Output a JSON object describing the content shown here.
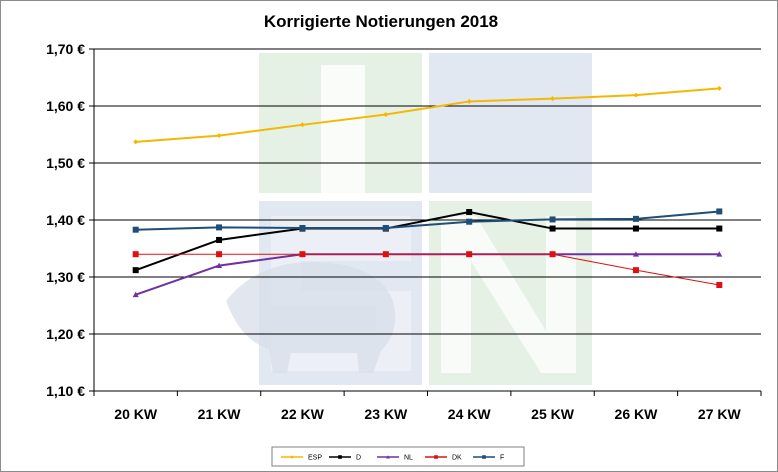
{
  "chart_data": {
    "type": "line",
    "title": "Korrigierte Notierungen 2018",
    "categories": [
      "20 KW",
      "21 KW",
      "22 KW",
      "23 KW",
      "24 KW",
      "25 KW",
      "26 KW",
      "27 KW"
    ],
    "y_ticks": [
      "1,10 €",
      "1,20 €",
      "1,30 €",
      "1,40 €",
      "1,50 €",
      "1,60 €",
      "1,70 €"
    ],
    "ylim": [
      1.1,
      1.7
    ],
    "grid": true,
    "legend_position": "bottom",
    "series": [
      {
        "name": "ESP",
        "color": "#f5b800",
        "marker": "diamond",
        "values": [
          1.537,
          1.548,
          1.567,
          1.585,
          1.608,
          1.613,
          1.619,
          1.631
        ]
      },
      {
        "name": "D",
        "color": "#000000",
        "marker": "square",
        "values": [
          1.312,
          1.365,
          1.385,
          1.385,
          1.414,
          1.385,
          1.385,
          1.385
        ]
      },
      {
        "name": "NL",
        "color": "#7030a0",
        "marker": "triangle",
        "values": [
          1.269,
          1.32,
          1.34,
          1.34,
          1.34,
          1.34,
          1.34,
          1.34
        ]
      },
      {
        "name": "DK",
        "color": "#e01010",
        "marker": "square",
        "values": [
          1.34,
          1.34,
          1.34,
          1.34,
          1.34,
          1.34,
          1.312,
          1.286
        ]
      },
      {
        "name": "F",
        "color": "#1f4e79",
        "marker": "square",
        "values": [
          1.383,
          1.387,
          1.386,
          1.386,
          1.397,
          1.401,
          1.402,
          1.415
        ]
      }
    ],
    "watermark": "ISN"
  }
}
